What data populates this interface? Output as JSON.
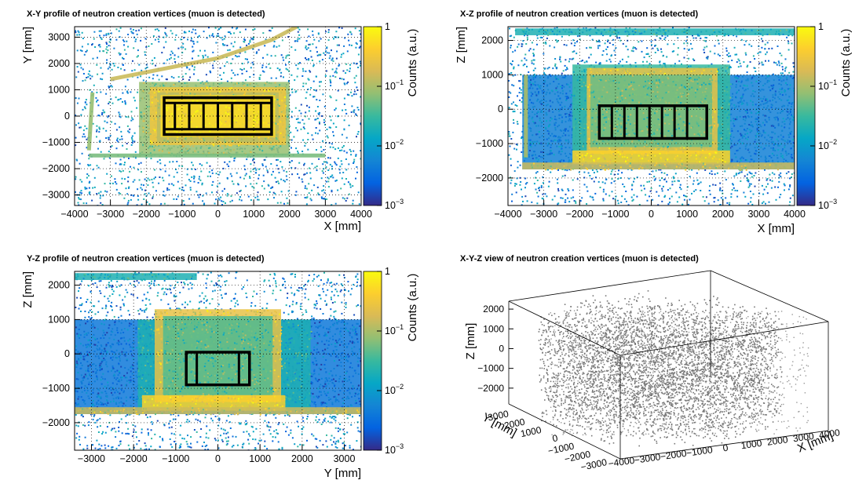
{
  "colorbar": {
    "label": "Counts (a.u.)",
    "ticks": [
      {
        "base": "1",
        "exp": ""
      },
      {
        "base": "10",
        "exp": "−1"
      },
      {
        "base": "10",
        "exp": "−2"
      },
      {
        "base": "10",
        "exp": "−3"
      }
    ],
    "stops": [
      "#352a87",
      "#0363e1",
      "#1485d4",
      "#06a7c6",
      "#38b99e",
      "#92bf73",
      "#d9ba56",
      "#fcce2e",
      "#f9fb0e"
    ]
  },
  "chart_data": [
    {
      "type": "heatmap",
      "title": "X-Y profile of neutron creation vertices (muon is detected)",
      "xlabel": "X [mm]",
      "ylabel": "Y [mm]",
      "xlim": [
        -4000,
        4000
      ],
      "ylim": [
        -3400,
        3400
      ],
      "xticks": [
        -4000,
        -3000,
        -2000,
        -1000,
        0,
        1000,
        2000,
        3000,
        4000
      ],
      "yticks": [
        -3000,
        -2000,
        -1000,
        0,
        1000,
        2000,
        3000
      ],
      "z_scale": "log",
      "zlim": [
        0.001,
        1
      ],
      "grid": true,
      "regions": [
        {
          "x": [
            -2200,
            2000
          ],
          "y": [
            -1500,
            1300
          ],
          "level": 0.08
        },
        {
          "x": [
            -1900,
            1900
          ],
          "y": [
            -1100,
            1100
          ],
          "level": 0.3
        },
        {
          "x": [
            -1700,
            1700
          ],
          "y": [
            -1000,
            900
          ],
          "level": 0.12
        },
        {
          "x": [
            -1600,
            1600
          ],
          "y": [
            -800,
            800
          ],
          "level": 0.55
        }
      ],
      "bands": [
        {
          "points": [
            [
              -3000,
              1400
            ],
            [
              -1500,
              1800
            ],
            [
              0,
              2200
            ],
            [
              1500,
              2900
            ],
            [
              2200,
              3400
            ]
          ],
          "level": 0.15
        },
        {
          "points": [
            [
              -3600,
              -1300
            ],
            [
              -3500,
              900
            ]
          ],
          "level": 0.08
        },
        {
          "points": [
            [
              -3600,
              -1500
            ],
            [
              3000,
              -1500
            ]
          ],
          "level": 0.06
        }
      ],
      "outline": {
        "x": [
          -1500,
          1500
        ],
        "y": [
          -700,
          700
        ],
        "inner_x": [
          -1500,
          1500
        ],
        "inner_y": [
          -500,
          500
        ],
        "dividers_x": [
          -1200,
          -800,
          -400,
          0,
          400,
          800,
          1200
        ]
      }
    },
    {
      "type": "heatmap",
      "title": "X-Z profile of neutron creation vertices (muon is detected)",
      "xlabel": "X [mm]",
      "ylabel": "Z [mm]",
      "xlim": [
        -4000,
        4000
      ],
      "ylim": [
        -2800,
        2400
      ],
      "xticks": [
        -4000,
        -3000,
        -2000,
        -1000,
        0,
        1000,
        2000,
        3000,
        4000
      ],
      "yticks": [
        -2000,
        -1000,
        0,
        1000,
        2000
      ],
      "z_scale": "log",
      "zlim": [
        0.001,
        1
      ],
      "grid": true,
      "regions": [
        {
          "x": [
            -3600,
            4000
          ],
          "y": [
            -1750,
            1000
          ],
          "level": 0.005
        },
        {
          "x": [
            -3800,
            4000
          ],
          "y": [
            2150,
            2350
          ],
          "level": 0.02
        },
        {
          "x": [
            -2200,
            2200
          ],
          "y": [
            -1550,
            1300
          ],
          "level": 0.03
        },
        {
          "x": [
            -1800,
            1850
          ],
          "y": [
            -1300,
            1200
          ],
          "level": 0.25
        },
        {
          "x": [
            -1700,
            1700
          ],
          "y": [
            -1100,
            1000
          ],
          "level": 0.05
        },
        {
          "x": [
            -2200,
            2200
          ],
          "y": [
            -1600,
            -1200
          ],
          "level": 0.45
        },
        {
          "x": [
            -3600,
            4000
          ],
          "y": [
            -1750,
            -1550
          ],
          "level": 0.15
        }
      ],
      "bands": [
        {
          "points": [
            [
              -3500,
              -1400
            ],
            [
              -3500,
              1000
            ]
          ],
          "level": 0.1
        }
      ],
      "outline": {
        "x": [
          -1450,
          1550
        ],
        "y": [
          -850,
          100
        ],
        "inner_x": [
          -1450,
          1550
        ],
        "inner_y": [
          -850,
          100
        ],
        "dividers_x": [
          -1100,
          -750,
          -400,
          -50,
          300,
          650,
          1000
        ]
      }
    },
    {
      "type": "heatmap",
      "title": "Y-Z profile of neutron creation vertices (muon is detected)",
      "xlabel": "Y [mm]",
      "ylabel": "Z [mm]",
      "xlim": [
        -3400,
        3400
      ],
      "ylim": [
        -2800,
        2400
      ],
      "xticks": [
        -3000,
        -2000,
        -1000,
        0,
        1000,
        2000,
        3000
      ],
      "yticks": [
        -2000,
        -1000,
        0,
        1000,
        2000
      ],
      "z_scale": "log",
      "zlim": [
        0.001,
        1
      ],
      "grid": true,
      "regions": [
        {
          "x": [
            -3400,
            3400
          ],
          "y": [
            -1750,
            1000
          ],
          "level": 0.004
        },
        {
          "x": [
            -3400,
            -500
          ],
          "y": [
            2150,
            2350
          ],
          "level": 0.02
        },
        {
          "x": [
            -1900,
            2200
          ],
          "y": [
            -1650,
            1000
          ],
          "level": 0.02
        },
        {
          "x": [
            -1500,
            1500
          ],
          "y": [
            -1400,
            1300
          ],
          "level": 0.25
        },
        {
          "x": [
            -1300,
            1300
          ],
          "y": [
            -1200,
            1100
          ],
          "level": 0.04
        },
        {
          "x": [
            -1800,
            1600
          ],
          "y": [
            -1650,
            -1200
          ],
          "level": 0.45
        },
        {
          "x": [
            -3400,
            3400
          ],
          "y": [
            -1750,
            -1550
          ],
          "level": 0.15
        }
      ],
      "bands": [],
      "outline": {
        "x": [
          -750,
          750
        ],
        "y": [
          -900,
          50
        ],
        "inner_x": [
          -750,
          750
        ],
        "inner_y": [
          -900,
          50
        ],
        "dividers_x": [
          -500,
          500
        ]
      }
    },
    {
      "type": "scatter",
      "title": "X-Y-Z view of neutron creation vertices (muon is detected)",
      "xlabel": "X [mm]",
      "ylabel": "Y [mm]",
      "zlabel": "Z [mm]",
      "xlim": [
        -4000,
        4000
      ],
      "ylim": [
        -3400,
        3400
      ],
      "zlim": [
        -2800,
        2400
      ],
      "xticks": [
        -4000,
        -3000,
        -2000,
        -1000,
        0,
        1000,
        2000,
        3000,
        4000
      ],
      "yticks": [
        -3000,
        -2000,
        -1000,
        0,
        1000,
        2000,
        3000
      ],
      "zticks": [
        -2000,
        -1000,
        0,
        1000,
        2000
      ],
      "point_color": "#777777"
    }
  ]
}
